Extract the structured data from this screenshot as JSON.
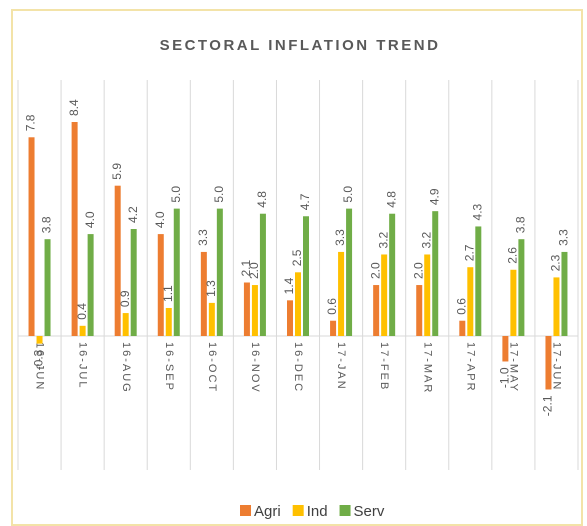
{
  "chart_data": {
    "type": "bar",
    "title": "SECTORAL INFLATION TREND",
    "categories": [
      "16-JUN",
      "16-JUL",
      "16-AUG",
      "16-SEP",
      "16-OCT",
      "16-NOV",
      "16-DEC",
      "17-JAN",
      "17-FEB",
      "17-MAR",
      "17-APR",
      "17-MAY",
      "17-JUN"
    ],
    "series": [
      {
        "name": "Agri",
        "color": "#ed7d31",
        "values": [
          7.8,
          8.4,
          5.9,
          4.0,
          3.3,
          2.1,
          1.4,
          0.6,
          2.0,
          2.0,
          0.6,
          -1.0,
          -2.1
        ],
        "value_labels": [
          "7.8",
          "8.4",
          "5.9",
          "4.0",
          "3.3",
          "2.1",
          "1.4",
          "0.6",
          "2.0",
          "2.0",
          "0.6",
          "-1.0",
          "-2.1"
        ]
      },
      {
        "name": "Ind",
        "color": "#ffc000",
        "values": [
          -0.3,
          0.4,
          0.9,
          1.1,
          1.3,
          2.0,
          2.5,
          3.3,
          3.2,
          3.2,
          2.7,
          2.6,
          2.3
        ],
        "value_labels": [
          "-0.3",
          "0.4",
          "0.9",
          "1.1",
          "1.3",
          "2.0",
          "2.5",
          "3.3",
          "3.2",
          "3.2",
          "2.7",
          "2.6",
          "2.3"
        ]
      },
      {
        "name": "Serv",
        "color": "#70ad47",
        "values": [
          3.8,
          4.0,
          4.2,
          5.0,
          5.0,
          4.8,
          4.7,
          5.0,
          4.8,
          4.9,
          4.3,
          3.8,
          3.3
        ],
        "value_labels": [
          "3.8",
          "4.0",
          "4.2",
          "5.0",
          "5.0",
          "4.8",
          "4.7",
          "5.0",
          "4.8",
          "4.9",
          "4.3",
          "3.8",
          "3.3"
        ]
      }
    ],
    "legend": "bottom"
  }
}
